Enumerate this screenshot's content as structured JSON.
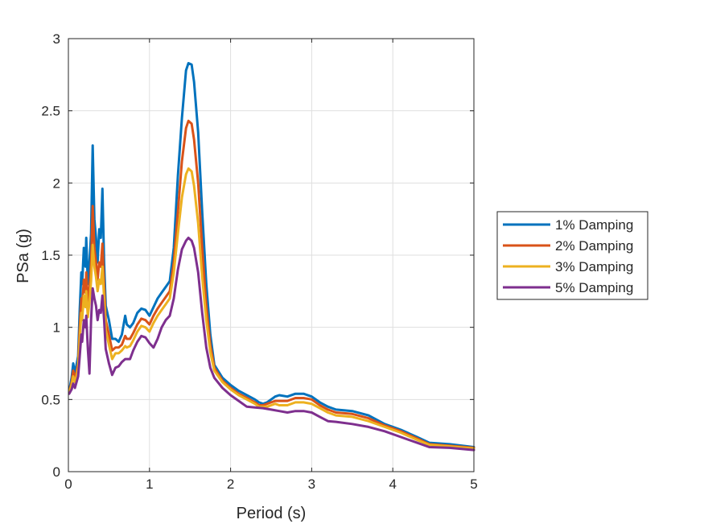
{
  "chart_data": {
    "type": "line",
    "xlabel": "Period (s)",
    "ylabel": "PSa (g)",
    "xlim": [
      0,
      5
    ],
    "ylim": [
      0,
      3
    ],
    "xticks": [
      "0",
      "1",
      "2",
      "3",
      "4",
      "5"
    ],
    "yticks": [
      "0",
      "0.5",
      "1",
      "1.5",
      "2",
      "2.5",
      "3"
    ],
    "grid": true,
    "legend_position": "outside-right",
    "series": [
      {
        "name": "1% Damping",
        "color": "#0072BD",
        "points": [
          [
            0.01,
            0.56
          ],
          [
            0.04,
            0.65
          ],
          [
            0.06,
            0.75
          ],
          [
            0.08,
            0.68
          ],
          [
            0.1,
            0.74
          ],
          [
            0.12,
            0.8
          ],
          [
            0.14,
            1.12
          ],
          [
            0.16,
            1.38
          ],
          [
            0.17,
            1.3
          ],
          [
            0.19,
            1.55
          ],
          [
            0.21,
            1.42
          ],
          [
            0.22,
            1.62
          ],
          [
            0.24,
            1.3
          ],
          [
            0.26,
            1.45
          ],
          [
            0.28,
            1.65
          ],
          [
            0.3,
            2.26
          ],
          [
            0.32,
            1.75
          ],
          [
            0.34,
            1.62
          ],
          [
            0.36,
            1.45
          ],
          [
            0.38,
            1.68
          ],
          [
            0.4,
            1.62
          ],
          [
            0.42,
            1.96
          ],
          [
            0.44,
            1.45
          ],
          [
            0.46,
            1.15
          ],
          [
            0.5,
            1.05
          ],
          [
            0.54,
            0.92
          ],
          [
            0.58,
            0.92
          ],
          [
            0.62,
            0.9
          ],
          [
            0.66,
            0.95
          ],
          [
            0.7,
            1.08
          ],
          [
            0.72,
            1.02
          ],
          [
            0.76,
            1.0
          ],
          [
            0.8,
            1.03
          ],
          [
            0.85,
            1.1
          ],
          [
            0.9,
            1.13
          ],
          [
            0.95,
            1.12
          ],
          [
            1.0,
            1.08
          ],
          [
            1.05,
            1.14
          ],
          [
            1.1,
            1.2
          ],
          [
            1.15,
            1.24
          ],
          [
            1.2,
            1.28
          ],
          [
            1.25,
            1.32
          ],
          [
            1.3,
            1.55
          ],
          [
            1.35,
            2.05
          ],
          [
            1.4,
            2.45
          ],
          [
            1.45,
            2.78
          ],
          [
            1.48,
            2.83
          ],
          [
            1.52,
            2.82
          ],
          [
            1.55,
            2.7
          ],
          [
            1.6,
            2.35
          ],
          [
            1.65,
            1.8
          ],
          [
            1.7,
            1.3
          ],
          [
            1.75,
            0.95
          ],
          [
            1.8,
            0.74
          ],
          [
            1.9,
            0.65
          ],
          [
            2.0,
            0.6
          ],
          [
            2.1,
            0.56
          ],
          [
            2.2,
            0.53
          ],
          [
            2.3,
            0.5
          ],
          [
            2.35,
            0.48
          ],
          [
            2.4,
            0.47
          ],
          [
            2.45,
            0.48
          ],
          [
            2.5,
            0.5
          ],
          [
            2.55,
            0.52
          ],
          [
            2.6,
            0.53
          ],
          [
            2.7,
            0.52
          ],
          [
            2.8,
            0.54
          ],
          [
            2.9,
            0.54
          ],
          [
            3.0,
            0.52
          ],
          [
            3.1,
            0.48
          ],
          [
            3.2,
            0.45
          ],
          [
            3.3,
            0.43
          ],
          [
            3.5,
            0.42
          ],
          [
            3.7,
            0.39
          ],
          [
            3.9,
            0.33
          ],
          [
            4.1,
            0.29
          ],
          [
            4.3,
            0.24
          ],
          [
            4.45,
            0.2
          ],
          [
            4.7,
            0.19
          ],
          [
            5.0,
            0.17
          ]
        ]
      },
      {
        "name": "2% Damping",
        "color": "#D95319",
        "points": [
          [
            0.01,
            0.55
          ],
          [
            0.04,
            0.62
          ],
          [
            0.06,
            0.7
          ],
          [
            0.08,
            0.64
          ],
          [
            0.1,
            0.69
          ],
          [
            0.12,
            0.75
          ],
          [
            0.14,
            1.0
          ],
          [
            0.16,
            1.2
          ],
          [
            0.17,
            1.14
          ],
          [
            0.19,
            1.33
          ],
          [
            0.21,
            1.24
          ],
          [
            0.22,
            1.38
          ],
          [
            0.24,
            1.15
          ],
          [
            0.26,
            1.28
          ],
          [
            0.28,
            1.45
          ],
          [
            0.3,
            1.84
          ],
          [
            0.32,
            1.55
          ],
          [
            0.34,
            1.45
          ],
          [
            0.36,
            1.33
          ],
          [
            0.38,
            1.45
          ],
          [
            0.4,
            1.42
          ],
          [
            0.42,
            1.58
          ],
          [
            0.44,
            1.3
          ],
          [
            0.46,
            1.05
          ],
          [
            0.5,
            0.95
          ],
          [
            0.54,
            0.84
          ],
          [
            0.58,
            0.86
          ],
          [
            0.62,
            0.86
          ],
          [
            0.66,
            0.88
          ],
          [
            0.7,
            0.94
          ],
          [
            0.72,
            0.92
          ],
          [
            0.76,
            0.92
          ],
          [
            0.8,
            0.96
          ],
          [
            0.85,
            1.02
          ],
          [
            0.9,
            1.06
          ],
          [
            0.95,
            1.05
          ],
          [
            1.0,
            1.02
          ],
          [
            1.05,
            1.08
          ],
          [
            1.1,
            1.13
          ],
          [
            1.15,
            1.17
          ],
          [
            1.2,
            1.21
          ],
          [
            1.25,
            1.25
          ],
          [
            1.3,
            1.45
          ],
          [
            1.35,
            1.8
          ],
          [
            1.4,
            2.15
          ],
          [
            1.45,
            2.38
          ],
          [
            1.48,
            2.43
          ],
          [
            1.52,
            2.41
          ],
          [
            1.55,
            2.3
          ],
          [
            1.6,
            2.0
          ],
          [
            1.65,
            1.55
          ],
          [
            1.7,
            1.15
          ],
          [
            1.75,
            0.88
          ],
          [
            1.8,
            0.72
          ],
          [
            1.9,
            0.63
          ],
          [
            2.0,
            0.58
          ],
          [
            2.1,
            0.54
          ],
          [
            2.2,
            0.51
          ],
          [
            2.3,
            0.48
          ],
          [
            2.35,
            0.46
          ],
          [
            2.4,
            0.46
          ],
          [
            2.45,
            0.47
          ],
          [
            2.5,
            0.48
          ],
          [
            2.55,
            0.49
          ],
          [
            2.6,
            0.49
          ],
          [
            2.7,
            0.49
          ],
          [
            2.8,
            0.51
          ],
          [
            2.9,
            0.51
          ],
          [
            3.0,
            0.5
          ],
          [
            3.1,
            0.46
          ],
          [
            3.2,
            0.43
          ],
          [
            3.3,
            0.41
          ],
          [
            3.5,
            0.4
          ],
          [
            3.7,
            0.37
          ],
          [
            3.9,
            0.32
          ],
          [
            4.1,
            0.28
          ],
          [
            4.3,
            0.23
          ],
          [
            4.45,
            0.19
          ],
          [
            4.7,
            0.18
          ],
          [
            5.0,
            0.165
          ]
        ]
      },
      {
        "name": "3% Damping",
        "color": "#EDB120",
        "points": [
          [
            0.01,
            0.55
          ],
          [
            0.04,
            0.6
          ],
          [
            0.06,
            0.66
          ],
          [
            0.08,
            0.62
          ],
          [
            0.1,
            0.66
          ],
          [
            0.12,
            0.72
          ],
          [
            0.14,
            0.92
          ],
          [
            0.16,
            1.1
          ],
          [
            0.17,
            1.05
          ],
          [
            0.19,
            1.22
          ],
          [
            0.21,
            1.14
          ],
          [
            0.22,
            1.25
          ],
          [
            0.24,
            1.07
          ],
          [
            0.26,
            1.18
          ],
          [
            0.28,
            1.32
          ],
          [
            0.3,
            1.57
          ],
          [
            0.32,
            1.42
          ],
          [
            0.34,
            1.35
          ],
          [
            0.36,
            1.25
          ],
          [
            0.38,
            1.33
          ],
          [
            0.4,
            1.3
          ],
          [
            0.42,
            1.42
          ],
          [
            0.44,
            1.2
          ],
          [
            0.46,
            0.98
          ],
          [
            0.5,
            0.88
          ],
          [
            0.54,
            0.78
          ],
          [
            0.58,
            0.82
          ],
          [
            0.62,
            0.82
          ],
          [
            0.66,
            0.84
          ],
          [
            0.7,
            0.87
          ],
          [
            0.72,
            0.86
          ],
          [
            0.76,
            0.87
          ],
          [
            0.8,
            0.91
          ],
          [
            0.85,
            0.97
          ],
          [
            0.9,
            1.01
          ],
          [
            0.95,
            1.0
          ],
          [
            1.0,
            0.97
          ],
          [
            1.05,
            1.03
          ],
          [
            1.1,
            1.08
          ],
          [
            1.15,
            1.12
          ],
          [
            1.2,
            1.16
          ],
          [
            1.25,
            1.2
          ],
          [
            1.3,
            1.38
          ],
          [
            1.35,
            1.65
          ],
          [
            1.4,
            1.9
          ],
          [
            1.45,
            2.06
          ],
          [
            1.48,
            2.1
          ],
          [
            1.52,
            2.08
          ],
          [
            1.55,
            1.98
          ],
          [
            1.6,
            1.72
          ],
          [
            1.65,
            1.35
          ],
          [
            1.7,
            1.05
          ],
          [
            1.75,
            0.83
          ],
          [
            1.8,
            0.7
          ],
          [
            1.9,
            0.62
          ],
          [
            2.0,
            0.57
          ],
          [
            2.1,
            0.53
          ],
          [
            2.2,
            0.5
          ],
          [
            2.3,
            0.47
          ],
          [
            2.35,
            0.45
          ],
          [
            2.4,
            0.45
          ],
          [
            2.45,
            0.45
          ],
          [
            2.5,
            0.46
          ],
          [
            2.55,
            0.47
          ],
          [
            2.6,
            0.46
          ],
          [
            2.7,
            0.46
          ],
          [
            2.8,
            0.48
          ],
          [
            2.9,
            0.48
          ],
          [
            3.0,
            0.47
          ],
          [
            3.1,
            0.44
          ],
          [
            3.2,
            0.41
          ],
          [
            3.3,
            0.39
          ],
          [
            3.5,
            0.38
          ],
          [
            3.7,
            0.35
          ],
          [
            3.9,
            0.31
          ],
          [
            4.1,
            0.27
          ],
          [
            4.3,
            0.22
          ],
          [
            4.45,
            0.185
          ],
          [
            4.7,
            0.175
          ],
          [
            5.0,
            0.16
          ]
        ]
      },
      {
        "name": "5% Damping",
        "color": "#7E2F8E",
        "points": [
          [
            0.01,
            0.54
          ],
          [
            0.04,
            0.57
          ],
          [
            0.06,
            0.61
          ],
          [
            0.08,
            0.58
          ],
          [
            0.1,
            0.62
          ],
          [
            0.12,
            0.66
          ],
          [
            0.14,
            0.8
          ],
          [
            0.16,
            0.95
          ],
          [
            0.17,
            0.9
          ],
          [
            0.19,
            1.05
          ],
          [
            0.21,
            1.0
          ],
          [
            0.22,
            1.08
          ],
          [
            0.24,
            0.85
          ],
          [
            0.26,
            0.68
          ],
          [
            0.28,
            1.05
          ],
          [
            0.3,
            1.27
          ],
          [
            0.32,
            1.2
          ],
          [
            0.34,
            1.15
          ],
          [
            0.36,
            1.05
          ],
          [
            0.38,
            1.12
          ],
          [
            0.4,
            1.1
          ],
          [
            0.42,
            1.22
          ],
          [
            0.44,
            1.05
          ],
          [
            0.46,
            0.85
          ],
          [
            0.5,
            0.75
          ],
          [
            0.54,
            0.67
          ],
          [
            0.58,
            0.72
          ],
          [
            0.62,
            0.73
          ],
          [
            0.66,
            0.76
          ],
          [
            0.7,
            0.78
          ],
          [
            0.72,
            0.78
          ],
          [
            0.76,
            0.78
          ],
          [
            0.8,
            0.84
          ],
          [
            0.85,
            0.9
          ],
          [
            0.9,
            0.94
          ],
          [
            0.95,
            0.93
          ],
          [
            1.0,
            0.89
          ],
          [
            1.05,
            0.86
          ],
          [
            1.1,
            0.92
          ],
          [
            1.15,
            1.0
          ],
          [
            1.2,
            1.05
          ],
          [
            1.25,
            1.08
          ],
          [
            1.3,
            1.2
          ],
          [
            1.35,
            1.4
          ],
          [
            1.4,
            1.54
          ],
          [
            1.45,
            1.6
          ],
          [
            1.48,
            1.62
          ],
          [
            1.52,
            1.6
          ],
          [
            1.55,
            1.55
          ],
          [
            1.6,
            1.38
          ],
          [
            1.65,
            1.1
          ],
          [
            1.7,
            0.86
          ],
          [
            1.75,
            0.72
          ],
          [
            1.8,
            0.65
          ],
          [
            1.9,
            0.58
          ],
          [
            2.0,
            0.53
          ],
          [
            2.1,
            0.49
          ],
          [
            2.2,
            0.45
          ],
          [
            2.3,
            0.445
          ],
          [
            2.4,
            0.44
          ],
          [
            2.5,
            0.43
          ],
          [
            2.6,
            0.42
          ],
          [
            2.7,
            0.41
          ],
          [
            2.8,
            0.42
          ],
          [
            2.9,
            0.42
          ],
          [
            3.0,
            0.41
          ],
          [
            3.1,
            0.38
          ],
          [
            3.2,
            0.35
          ],
          [
            3.3,
            0.345
          ],
          [
            3.5,
            0.33
          ],
          [
            3.7,
            0.31
          ],
          [
            3.9,
            0.28
          ],
          [
            4.1,
            0.24
          ],
          [
            4.3,
            0.2
          ],
          [
            4.45,
            0.17
          ],
          [
            4.7,
            0.165
          ],
          [
            5.0,
            0.15
          ]
        ]
      }
    ]
  }
}
